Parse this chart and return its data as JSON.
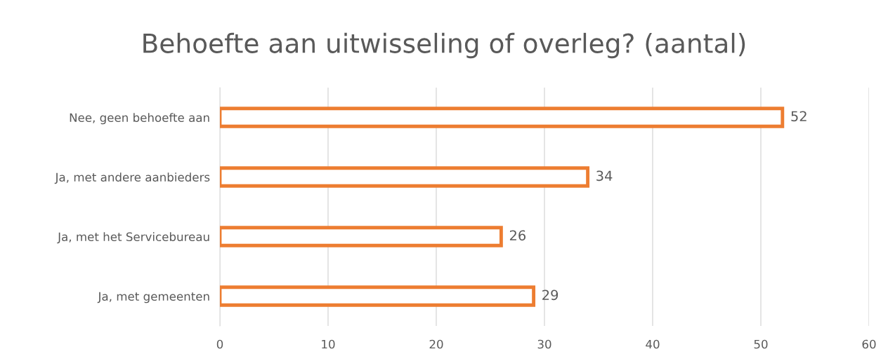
{
  "chart_data": {
    "type": "bar",
    "orientation": "horizontal",
    "title": "Behoefte aan uitwisseling of overleg? (aantal)",
    "categories": [
      "Nee, geen behoefte aan",
      "Ja, met andere aanbieders",
      "Ja, met het Servicebureau",
      "Ja, met gemeenten"
    ],
    "values": [
      52,
      34,
      26,
      29
    ],
    "color": "#ed7d31",
    "xlim": [
      0,
      60
    ],
    "xticks": [
      0,
      10,
      20,
      30,
      40,
      50,
      60
    ],
    "grid": "x",
    "data_labels": true,
    "legend": false
  }
}
